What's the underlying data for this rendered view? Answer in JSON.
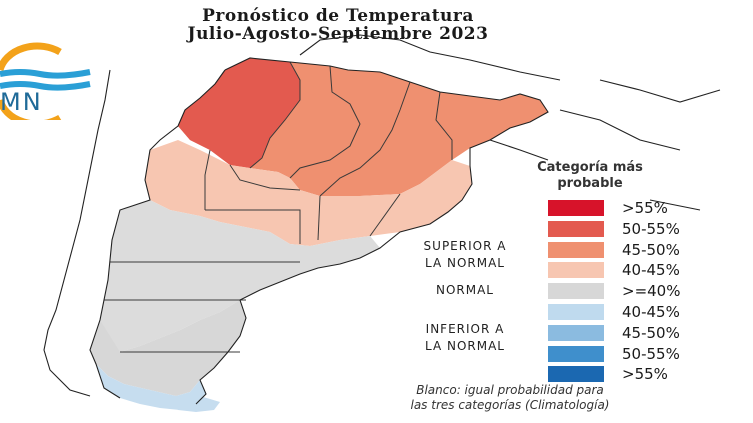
{
  "header": {
    "title_line1": "Pronóstico de Temperatura",
    "title_line2": "Julio-Agosto-Septiembre 2023"
  },
  "logo": {
    "text": "SMN",
    "visible_text": "MN",
    "colors": {
      "ring": "#f3a21a",
      "waves": "#2a9fd6"
    }
  },
  "map": {
    "region": "Argentina",
    "dominant_colors": {
      "north": "#e05a4e",
      "center": "#ef9f87",
      "center_south": "#f6c9b8",
      "south": "#d9d9d9",
      "tip": "#c6ddef"
    }
  },
  "legend": {
    "title_line1": "Categoría más",
    "title_line2": "probable",
    "items": [
      {
        "label": ">55%",
        "color": "#d7132a"
      },
      {
        "label": "50-55%",
        "color": "#e35a4f"
      },
      {
        "label": "45-50%",
        "color": "#ef9070"
      },
      {
        "label": "40-45%",
        "color": "#f7c6b1"
      },
      {
        "label": ">=40%",
        "color": "#d7d7d7"
      },
      {
        "label": "40-45%",
        "color": "#bfdaee"
      },
      {
        "label": "45-50%",
        "color": "#8bbbe0"
      },
      {
        "label": "50-55%",
        "color": "#3f8fcc"
      },
      {
        "label": ">55%",
        "color": "#1b68b1"
      }
    ],
    "categories": {
      "superior_line1": "SUPERIOR A",
      "superior_line2": "LA NORMAL",
      "normal": "NORMAL",
      "inferior_line1": "INFERIOR A",
      "inferior_line2": "LA NORMAL"
    }
  },
  "note": {
    "line1": "Blanco: igual probabilidad para",
    "line2": "las tres categorías (Climatología)"
  }
}
